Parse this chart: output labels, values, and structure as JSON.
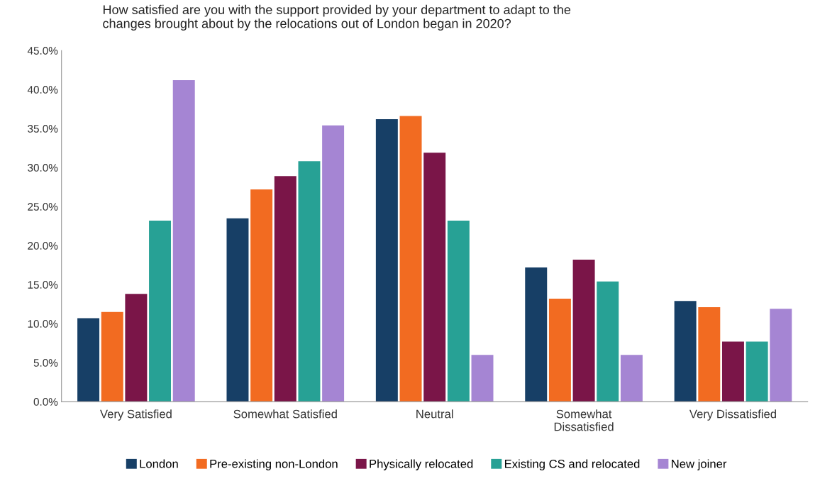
{
  "chart_data": {
    "type": "bar",
    "title": "How satisfied are you with the support provided by your department to adapt to the\nchanges brought about by the relocations out of London began in 2020?",
    "categories": [
      "Very Satisfied",
      "Somewhat Satisfied",
      "Neutral",
      "Somewhat\nDissatisfied",
      "Very Dissatisfied"
    ],
    "series": [
      {
        "name": "London",
        "color": "#173f66",
        "values": [
          10.7,
          23.5,
          36.2,
          17.2,
          12.9
        ]
      },
      {
        "name": "Pre-existing non-London",
        "color": "#f26b21",
        "values": [
          11.5,
          27.2,
          36.6,
          13.2,
          12.1
        ]
      },
      {
        "name": "Physically relocated",
        "color": "#7a1548",
        "values": [
          13.8,
          28.9,
          31.9,
          18.2,
          7.7
        ]
      },
      {
        "name": "Existing CS and relocated",
        "color": "#27a195",
        "values": [
          23.2,
          30.8,
          23.2,
          15.4,
          7.7
        ]
      },
      {
        "name": "New joiner",
        "color": "#a585d3",
        "values": [
          41.2,
          35.4,
          6.0,
          6.0,
          11.9
        ]
      }
    ],
    "ylim": [
      0,
      45
    ],
    "yticks": [
      {
        "value": 0,
        "label": "0.0%"
      },
      {
        "value": 5,
        "label": "5.0%"
      },
      {
        "value": 10,
        "label": "10.0%"
      },
      {
        "value": 15,
        "label": "15.0%"
      },
      {
        "value": 20,
        "label": "20.0%"
      },
      {
        "value": 25,
        "label": "25.0%"
      },
      {
        "value": 30,
        "label": "30.0%"
      },
      {
        "value": 35,
        "label": "35.0%"
      },
      {
        "value": 40,
        "label": "40.0%"
      },
      {
        "value": 45,
        "label": "45.0%"
      }
    ],
    "grid": false,
    "legend": "bottom"
  }
}
